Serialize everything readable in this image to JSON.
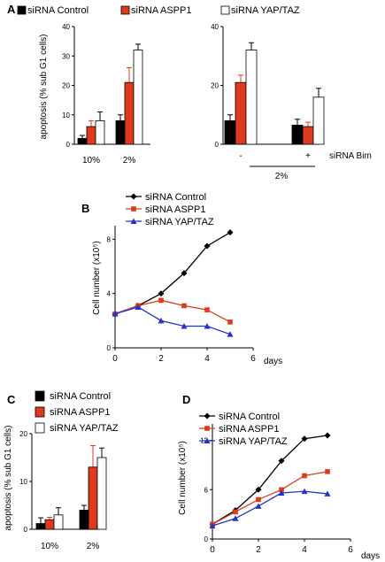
{
  "chart_data": [
    {
      "panel": "A",
      "type": "bar",
      "ylabel": "apoptosis (% sub G1 cells)",
      "ylim": [
        0,
        40
      ],
      "yticks": [
        0,
        10,
        20,
        30,
        40
      ],
      "legend": [
        {
          "name": "siRNA Control",
          "color": "#000000"
        },
        {
          "name": "siRNA ASPP1",
          "color": "#e03a1e"
        },
        {
          "name": "siRNA YAP/TAZ",
          "color": "#ffffff"
        }
      ],
      "categories": [
        "10%",
        "2%"
      ],
      "series": [
        {
          "name": "siRNA Control",
          "values": [
            2,
            8
          ],
          "errors": [
            1,
            2
          ]
        },
        {
          "name": "siRNA ASPP1",
          "values": [
            6,
            21
          ],
          "errors": [
            2,
            5
          ]
        },
        {
          "name": "siRNA YAP/TAZ",
          "values": [
            8,
            32
          ],
          "errors": [
            3,
            2
          ]
        }
      ]
    },
    {
      "panel": "A",
      "type": "bar",
      "ylim": [
        0,
        40
      ],
      "yticks": [
        0,
        20,
        40
      ],
      "categories": [
        "-",
        "+"
      ],
      "category_axis_label": "siRNA Bim",
      "group_label": "2%",
      "series": [
        {
          "name": "siRNA Control",
          "values": [
            8,
            6.5
          ],
          "errors": [
            2,
            2
          ]
        },
        {
          "name": "siRNA ASPP1",
          "values": [
            21,
            6
          ],
          "errors": [
            2.5,
            1.5
          ]
        },
        {
          "name": "siRNA YAP/TAZ",
          "values": [
            32,
            16
          ],
          "errors": [
            2.5,
            3
          ]
        }
      ]
    },
    {
      "panel": "B",
      "type": "line",
      "xlabel": "days",
      "ylabel": "Cell number (x10⁵)",
      "xlim": [
        0,
        6
      ],
      "ylim": [
        0,
        9
      ],
      "xticks": [
        0,
        2,
        4,
        6
      ],
      "yticks": [
        0,
        4,
        8
      ],
      "x": [
        0,
        1,
        2,
        3,
        4,
        5
      ],
      "series": [
        {
          "name": "siRNA Control",
          "color": "#000000",
          "marker": "diamond",
          "values": [
            2.5,
            3.1,
            4.0,
            5.5,
            7.5,
            8.5
          ]
        },
        {
          "name": "siRNA ASPP1",
          "color": "#e03a1e",
          "marker": "square",
          "values": [
            2.5,
            3.1,
            3.5,
            3.1,
            2.8,
            1.9
          ]
        },
        {
          "name": "siRNA YAP/TAZ",
          "color": "#2233cc",
          "marker": "triangle",
          "values": [
            2.5,
            3.0,
            2.0,
            1.6,
            1.6,
            1.0
          ]
        }
      ]
    },
    {
      "panel": "C",
      "type": "bar",
      "ylabel": "apoptosis (% sub G1 cells)",
      "ylim": [
        0,
        20
      ],
      "yticks": [
        0,
        10,
        20
      ],
      "legend": [
        {
          "name": "siRNA Control",
          "color": "#000000"
        },
        {
          "name": "siRNA ASPP1",
          "color": "#e03a1e"
        },
        {
          "name": "siRNA YAP/TAZ",
          "color": "#ffffff"
        }
      ],
      "categories": [
        "10%",
        "2%"
      ],
      "series": [
        {
          "name": "siRNA Control",
          "values": [
            1.2,
            4
          ],
          "errors": [
            1.2,
            1
          ]
        },
        {
          "name": "siRNA ASPP1",
          "values": [
            2,
            13
          ],
          "errors": [
            0.5,
            4.5
          ]
        },
        {
          "name": "siRNA YAP/TAZ",
          "values": [
            3,
            15
          ],
          "errors": [
            1.5,
            2
          ]
        }
      ]
    },
    {
      "panel": "D",
      "type": "line",
      "xlabel": "days",
      "ylabel": "Cell number (x10⁵)",
      "xlim": [
        0,
        6
      ],
      "ylim": [
        0,
        14
      ],
      "xticks": [
        0,
        2,
        4,
        6
      ],
      "yticks": [
        0,
        6,
        12
      ],
      "x": [
        0,
        1,
        2,
        3,
        4,
        5
      ],
      "series": [
        {
          "name": "siRNA Control",
          "color": "#000000",
          "marker": "diamond",
          "values": [
            1.8,
            3.5,
            6.0,
            9.5,
            12.2,
            12.6
          ]
        },
        {
          "name": "siRNA ASPP1",
          "color": "#e03a1e",
          "marker": "square",
          "values": [
            1.8,
            3.3,
            4.8,
            6.0,
            7.7,
            8.2
          ]
        },
        {
          "name": "siRNA YAP/TAZ",
          "color": "#2233cc",
          "marker": "triangle",
          "values": [
            1.6,
            2.5,
            4.0,
            5.6,
            5.8,
            5.5
          ]
        }
      ]
    }
  ]
}
